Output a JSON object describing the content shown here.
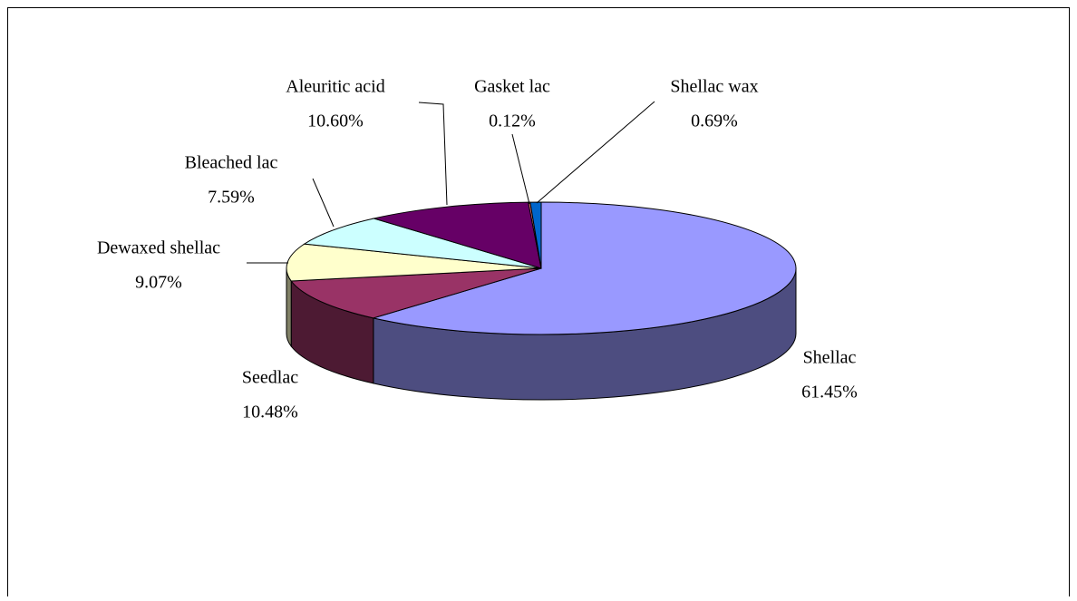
{
  "chart_data": {
    "type": "pie3d",
    "categories": [
      "Shellac",
      "Seedlac",
      "Dewaxed shellac",
      "Bleached lac",
      "Aleuritic acid",
      "Gasket lac",
      "Shellac wax"
    ],
    "values": [
      61.45,
      10.48,
      9.07,
      7.59,
      10.6,
      0.12,
      0.69
    ],
    "value_labels": [
      "61.45%",
      "10.48%",
      "9.07%",
      "7.59%",
      "10.60%",
      "0.12%",
      "0.69%"
    ],
    "colors": [
      "#9999ff",
      "#993366",
      "#ffffcc",
      "#ccffff",
      "#660066",
      "#ff8080",
      "#0066cc"
    ]
  }
}
